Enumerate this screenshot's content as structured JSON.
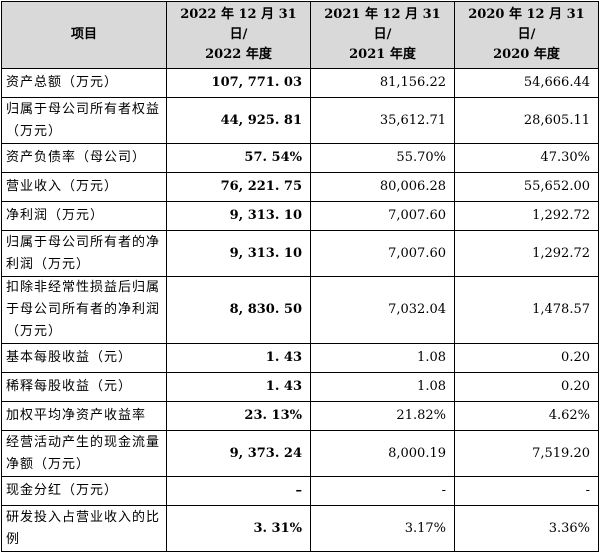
{
  "headers": {
    "item": "项目",
    "y2022_l1": "2022 年 12 月 31 日/",
    "y2022_l2": "2022 年度",
    "y2021_l1": "2021 年 12 月 31 日/",
    "y2021_l2": "2021 年度",
    "y2020_l1": "2020 年 12 月 31 日/",
    "y2020_l2": "2020 年度"
  },
  "rows": [
    {
      "label": "资产总额（万元）",
      "v2022": "107, 771. 03",
      "v2021": "81,156.22",
      "v2020": "54,666.44"
    },
    {
      "label": "归属于母公司所有者权益（万元）",
      "v2022": "44, 925. 81",
      "v2021": "35,612.71",
      "v2020": "28,605.11"
    },
    {
      "label": "资产负债率（母公司）",
      "v2022": "57. 54%",
      "v2021": "55.70%",
      "v2020": "47.30%"
    },
    {
      "label": "营业收入（万元）",
      "v2022": "76, 221. 75",
      "v2021": "80,006.28",
      "v2020": "55,652.00"
    },
    {
      "label": "净利润（万元）",
      "v2022": "9, 313. 10",
      "v2021": "7,007.60",
      "v2020": "1,292.72"
    },
    {
      "label": "归属于母公司所有者的净利润（万元）",
      "v2022": "9, 313. 10",
      "v2021": "7,007.60",
      "v2020": "1,292.72"
    },
    {
      "label": "扣除非经常性损益后归属于母公司所有者的净利润（万元）",
      "v2022": "8, 830. 50",
      "v2021": "7,032.04",
      "v2020": "1,478.57"
    },
    {
      "label": "基本每股收益（元）",
      "v2022": "1. 43",
      "v2021": "1.08",
      "v2020": "0.20"
    },
    {
      "label": "稀释每股收益（元）",
      "v2022": "1. 43",
      "v2021": "1.08",
      "v2020": "0.20"
    },
    {
      "label": "加权平均净资产收益率",
      "v2022": "23. 13%",
      "v2021": "21.82%",
      "v2020": "4.62%"
    },
    {
      "label": "经营活动产生的现金流量净额（万元）",
      "v2022": "9, 373. 24",
      "v2021": "8,000.19",
      "v2020": "7,519.20"
    },
    {
      "label": "现金分红（万元）",
      "v2022": "–",
      "v2021": "-",
      "v2020": "-"
    },
    {
      "label": "研发投入占营业收入的比例",
      "v2022": "3. 31%",
      "v2021": "3.17%",
      "v2020": "3.36%"
    }
  ]
}
